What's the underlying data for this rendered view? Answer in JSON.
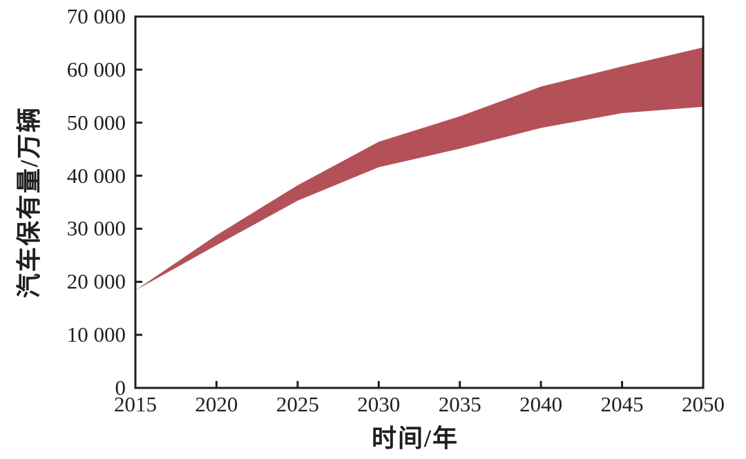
{
  "chart_data": {
    "type": "area",
    "subtype": "range-band",
    "title": "",
    "xlabel": "时间/年",
    "ylabel": "汽车保有量/万辆",
    "x": [
      2015,
      2020,
      2025,
      2030,
      2035,
      2040,
      2045,
      2050
    ],
    "series": [
      {
        "name": "upper-bound",
        "values": [
          18400,
          28800,
          38200,
          46400,
          51200,
          56800,
          60600,
          64200
        ]
      },
      {
        "name": "lower-bound",
        "values": [
          18400,
          26900,
          35300,
          41600,
          45100,
          49000,
          51800,
          53000
        ]
      }
    ],
    "xlim": [
      2015,
      2050
    ],
    "ylim": [
      0,
      70000
    ],
    "x_tick_values": [
      2015,
      2020,
      2025,
      2030,
      2035,
      2040,
      2045,
      2050
    ],
    "x_tick_labels": [
      "2015",
      "2020",
      "2025",
      "2030",
      "2035",
      "2040",
      "2045",
      "2050"
    ],
    "y_tick_values": [
      0,
      10000,
      20000,
      30000,
      40000,
      50000,
      60000,
      70000
    ],
    "y_tick_labels": [
      "0",
      "10 000",
      "20 000",
      "30 000",
      "40 000",
      "50 000",
      "60 000",
      "70 000"
    ],
    "grid": false,
    "legend": "none",
    "band_color": "#b45158",
    "axis_color": "#1f1f1f",
    "background_color": "#ffffff"
  }
}
